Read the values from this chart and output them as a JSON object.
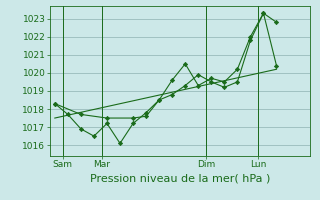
{
  "bg_color": "#cce8e8",
  "grid_color": "#99bbbb",
  "line_color": "#1a6b1a",
  "marker_color": "#1a6b1a",
  "xlabel": "Pression niveau de la mer( hPa )",
  "xlabel_color": "#1a6b1a",
  "yticks": [
    1016,
    1017,
    1018,
    1019,
    1020,
    1021,
    1022,
    1023
  ],
  "ylim": [
    1015.4,
    1023.7
  ],
  "day_labels": [
    "Sam",
    "Mar",
    "Dim",
    "Lun"
  ],
  "day_positions": [
    0.5,
    2.0,
    6.0,
    8.0
  ],
  "xlim": [
    0,
    10.0
  ],
  "vline_positions": [
    0.5,
    2.0,
    6.0,
    8.0
  ],
  "line1_x": [
    0.2,
    0.7,
    1.2,
    1.7,
    2.2,
    2.7,
    3.2,
    3.7,
    4.2,
    4.7,
    5.2,
    5.7,
    6.2,
    6.7,
    7.2,
    7.7,
    8.2,
    8.7
  ],
  "line1_y": [
    1018.3,
    1017.7,
    1016.9,
    1016.5,
    1017.2,
    1016.1,
    1017.2,
    1017.8,
    1018.5,
    1019.6,
    1020.5,
    1019.3,
    1019.7,
    1019.5,
    1020.2,
    1022.0,
    1023.3,
    1022.8
  ],
  "line2_x": [
    0.2,
    1.2,
    2.2,
    3.2,
    3.7,
    4.2,
    4.7,
    5.2,
    5.7,
    6.2,
    6.7,
    7.2,
    7.7,
    8.2,
    8.7
  ],
  "line2_y": [
    1018.3,
    1017.7,
    1017.5,
    1017.5,
    1017.6,
    1018.5,
    1018.8,
    1019.3,
    1019.9,
    1019.5,
    1019.2,
    1019.5,
    1021.8,
    1023.3,
    1020.4
  ],
  "line3_x": [
    0.2,
    8.7
  ],
  "line3_y": [
    1017.5,
    1020.2
  ],
  "tick_fontsize": 6.5,
  "label_fontsize": 8.0
}
